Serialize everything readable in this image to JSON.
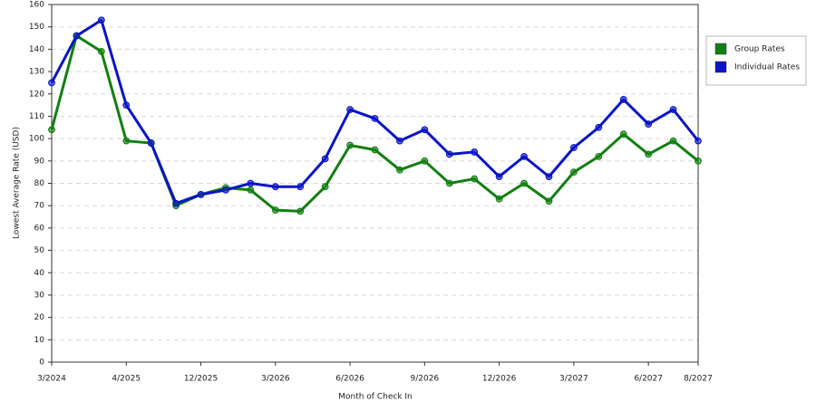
{
  "chart_data": {
    "type": "line",
    "x_label": "Month of Check In",
    "y_label": "Lowest Average Rate (USD)",
    "categories": [
      "3/2024",
      null,
      null,
      "4/2025",
      null,
      null,
      "12/2025",
      null,
      null,
      "3/2026",
      null,
      null,
      "6/2026",
      null,
      null,
      "9/2026",
      null,
      null,
      "12/2026",
      null,
      null,
      "3/2027",
      null,
      null,
      "6/2027",
      null,
      "8/2027"
    ],
    "series": [
      {
        "name": "Group Rates",
        "color": "#118011",
        "values": [
          104,
          146,
          139,
          99,
          98,
          70,
          75,
          78,
          77,
          68,
          67.5,
          78.5,
          97,
          95,
          86,
          90,
          80,
          82,
          73,
          80,
          72,
          85,
          92,
          102,
          93,
          99,
          90
        ]
      },
      {
        "name": "Individual Rates",
        "color": "#0a14c8",
        "values": [
          125,
          146,
          153,
          115,
          98,
          71,
          75,
          77,
          80,
          78.5,
          78.5,
          91,
          113,
          109,
          99,
          104,
          93,
          94,
          83,
          92,
          83,
          96,
          105,
          117.5,
          106.5,
          113,
          99
        ]
      }
    ],
    "ylim": [
      0,
      160
    ],
    "yticks": [
      0,
      10,
      20,
      30,
      40,
      50,
      60,
      70,
      80,
      90,
      100,
      110,
      120,
      130,
      140,
      150,
      160
    ],
    "grid": true,
    "legend": "right"
  }
}
